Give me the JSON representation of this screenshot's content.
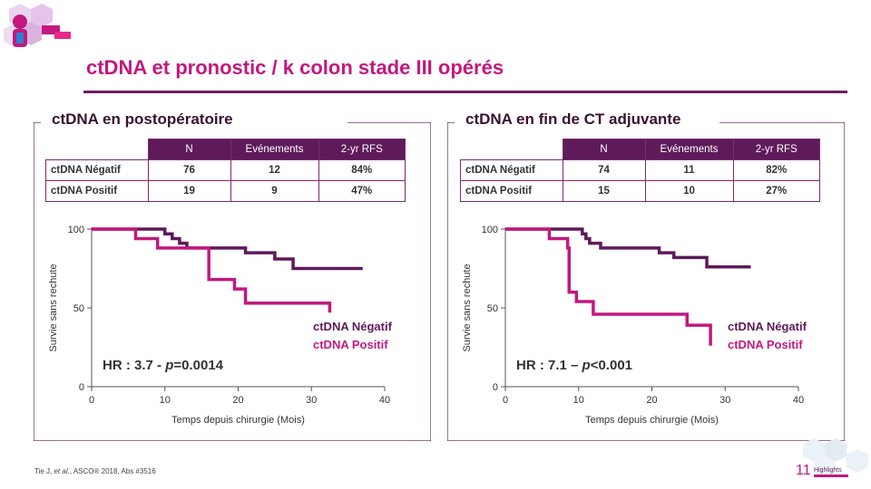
{
  "title": "ctDNA et pronostic / k colon stade III opérés",
  "colors": {
    "accent": "#c2197e",
    "negatif": "#5e1a5a",
    "positif": "#c2197e"
  },
  "header_logo": {
    "icon": "conference-logo-icon"
  },
  "footer": {
    "citation_prefix": "Tie J, ",
    "citation_etal": "et al.",
    "citation_suffix": ", ASCO® 2018, Abs #3516",
    "logo_number": "11",
    "logo_text": "Highlights"
  },
  "panels": [
    {
      "title": "ctDNA en postopératoire",
      "table": {
        "headers": [
          "N",
          "Evénements",
          "2-yr RFS"
        ],
        "rows": [
          {
            "label": "ctDNA Négatif",
            "n": "76",
            "events": "12",
            "rfs": "84%"
          },
          {
            "label": "ctDNA Positif",
            "n": "19",
            "events": "9",
            "rfs": "47%"
          }
        ]
      },
      "hr_prefix": "HR : 3.7 - ",
      "hr_p": "p",
      "hr_suffix": "=0.0014",
      "legend": [
        "ctDNA Négatif",
        "ctDNA Positif"
      ]
    },
    {
      "title": "ctDNA en fin de CT adjuvante",
      "table": {
        "headers": [
          "N",
          "Evénements",
          "2-yr RFS"
        ],
        "rows": [
          {
            "label": "ctDNA Négatif",
            "n": "74",
            "events": "11",
            "rfs": "82%"
          },
          {
            "label": "ctDNA Positif",
            "n": "15",
            "events": "10",
            "rfs": "27%"
          }
        ]
      },
      "hr_prefix": "HR : 7.1 – ",
      "hr_p": "p",
      "hr_suffix": "<0.001",
      "legend": [
        "ctDNA Négatif",
        "ctDNA Positif"
      ]
    }
  ],
  "chart_data": [
    {
      "type": "line",
      "step": true,
      "xlabel": "Temps depuis chirurgie (Mois)",
      "ylabel": "Survie sans rechute",
      "xlim": [
        0,
        40
      ],
      "ylim": [
        0,
        100
      ],
      "xticks": [
        "0",
        "10",
        "20",
        "30",
        "40"
      ],
      "yticks": [
        "0",
        "50",
        "100"
      ],
      "series": [
        {
          "name": "ctDNA Négatif",
          "color": "#5e1a5a",
          "x": [
            0,
            5,
            10,
            11,
            12,
            13,
            21,
            25,
            27.5,
            37
          ],
          "y": [
            100,
            100,
            97,
            94,
            91,
            88,
            85,
            81,
            75,
            75
          ]
        },
        {
          "name": "ctDNA Positif",
          "color": "#c2197e",
          "x": [
            0,
            5,
            6,
            9,
            16,
            19.5,
            21,
            32.5
          ],
          "y": [
            100,
            100,
            94,
            88,
            68,
            62,
            53,
            47
          ]
        }
      ]
    },
    {
      "type": "line",
      "step": true,
      "xlabel": "Temps depuis chirurgie (Mois)",
      "ylabel": "Survie sans rechute",
      "xlim": [
        0,
        40
      ],
      "ylim": [
        0,
        100
      ],
      "xticks": [
        "0",
        "10",
        "20",
        "30",
        "40"
      ],
      "yticks": [
        "0",
        "50",
        "100"
      ],
      "series": [
        {
          "name": "ctDNA Négatif",
          "color": "#5e1a5a",
          "x": [
            0,
            5,
            10.5,
            11,
            11.5,
            13,
            18,
            21,
            23,
            27.5,
            33.5
          ],
          "y": [
            100,
            100,
            97,
            94,
            91,
            88,
            88,
            85,
            82,
            76,
            76
          ]
        },
        {
          "name": "ctDNA Positif",
          "color": "#c2197e",
          "x": [
            0,
            5,
            6,
            8.5,
            8.7,
            9.7,
            12,
            24.8,
            28
          ],
          "y": [
            100,
            100,
            94,
            88,
            60,
            54,
            46,
            39,
            26
          ]
        }
      ]
    }
  ]
}
